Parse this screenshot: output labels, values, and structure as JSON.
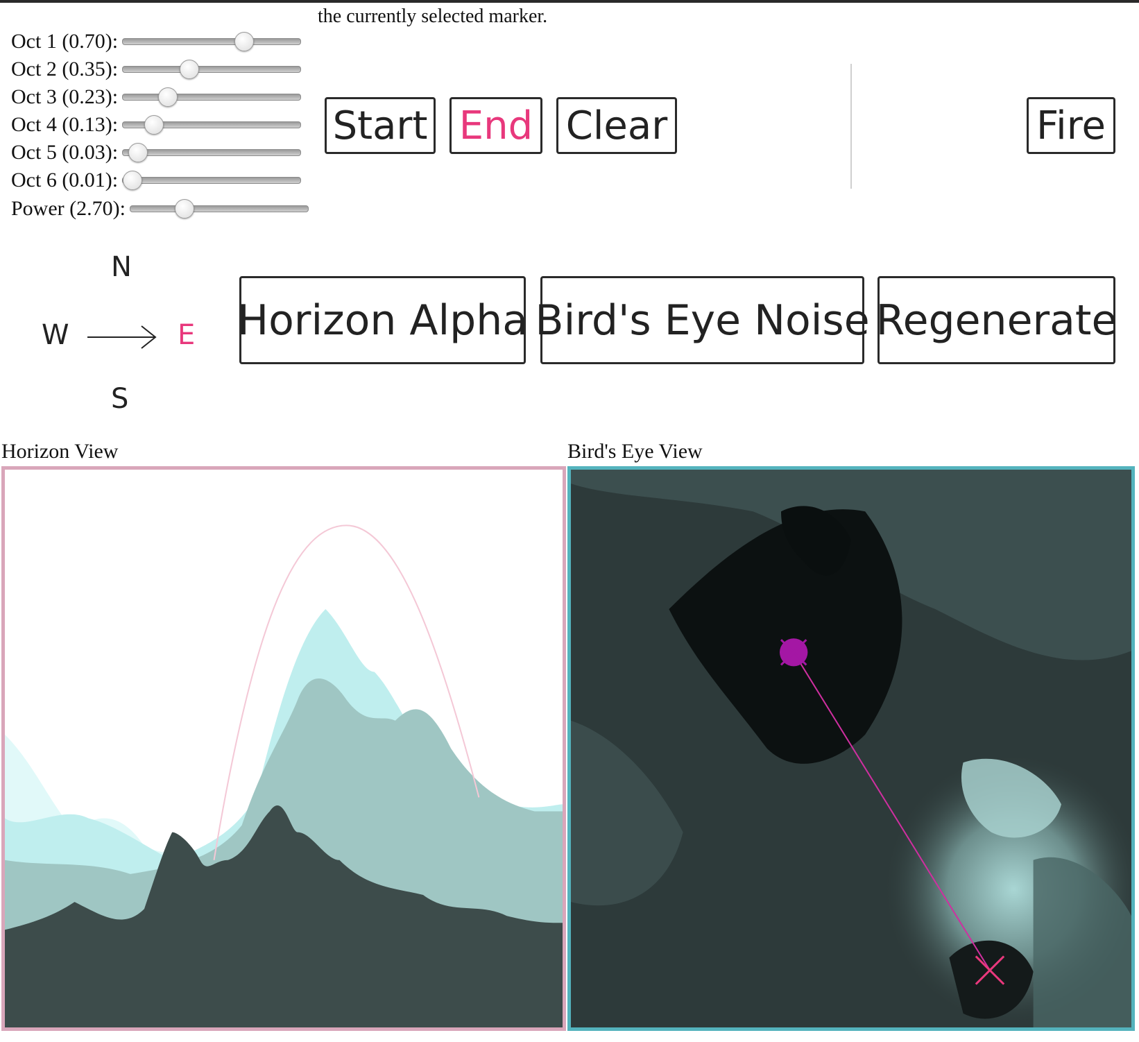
{
  "intro": {
    "trailing_text": "the currently selected marker."
  },
  "sliders": [
    {
      "label": "Oct 1 (0.70):",
      "value": 0.7,
      "fraction": 0.68
    },
    {
      "label": "Oct 2 (0.35):",
      "value": 0.35,
      "fraction": 0.37
    },
    {
      "label": "Oct 3 (0.23):",
      "value": 0.23,
      "fraction": 0.25
    },
    {
      "label": "Oct 4 (0.13):",
      "value": 0.13,
      "fraction": 0.17
    },
    {
      "label": "Oct 5 (0.03):",
      "value": 0.03,
      "fraction": 0.08
    },
    {
      "label": "Oct 6 (0.01):",
      "value": 0.01,
      "fraction": 0.05
    },
    {
      "label": "Power (2.70):",
      "value": 2.7,
      "fraction": 0.3
    }
  ],
  "marker_buttons": {
    "start": "Start",
    "end": "End",
    "clear": "Clear",
    "selected": "end"
  },
  "fire_button": "Fire",
  "compass": {
    "north": "N",
    "south": "S",
    "west": "W",
    "east": "E",
    "selected": "east"
  },
  "action_buttons": {
    "horizon_alpha": "Horizon Alpha",
    "birds_eye_noise": "Bird's Eye Noise",
    "regenerate": "Regenerate"
  },
  "views": {
    "horizon_label": "Horizon View",
    "birds_eye_label": "Bird's Eye View"
  },
  "colors": {
    "accent": "#e8387c",
    "start_marker": "#a417a4",
    "horizon_border": "#d9a6ba",
    "birds_eye_border": "#54b3bd",
    "terrain_dark": "#3d4c4b",
    "terrain_light": "#d7fbfb"
  }
}
